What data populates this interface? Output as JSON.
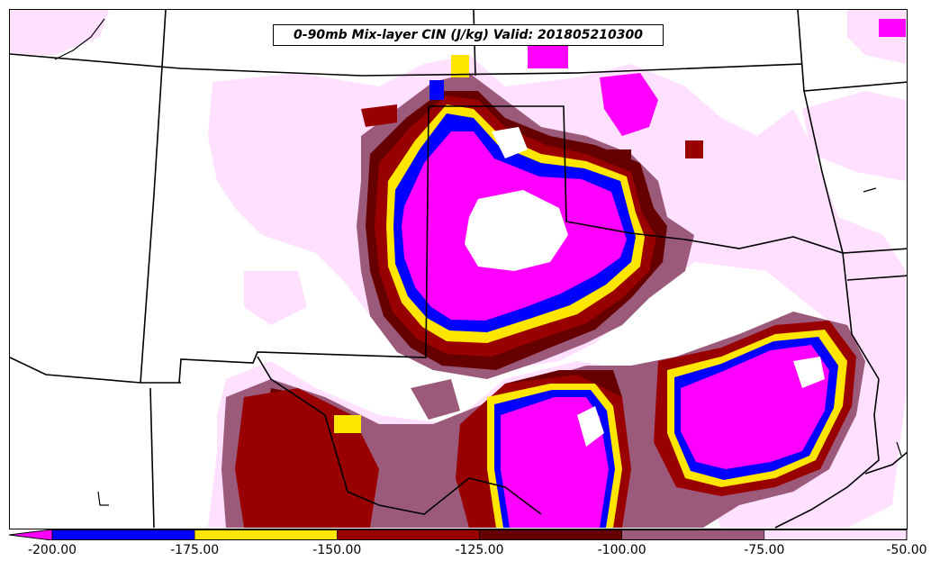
{
  "title": "0-90mb Mix-layer CIN (J/kg) Valid: 201805210300",
  "colors": {
    "lt_m200": "#ff00ff",
    "m200_m175": "#0000ff",
    "m175_m150": "#ffe600",
    "m150_m125": "#990000",
    "m125_m100": "#660000",
    "m100_m75": "#9c5a7a",
    "m75_m50": "#ffe0ff"
  },
  "colorbar": {
    "levels": [
      "-200.00",
      "-175.00",
      "-150.00",
      "-125.00",
      "-100.00",
      "-75.00",
      "-50.00"
    ],
    "segment_colors": [
      "#0000ff",
      "#ffe600",
      "#990000",
      "#660000",
      "#9c5a7a",
      "#ffe0ff"
    ],
    "underflow_color": "#ff00ff"
  },
  "map": {
    "region": "Southern Plains (OK / TX / KS / NM / AR / LA)",
    "boundaries": "state lines and coastline in black"
  }
}
